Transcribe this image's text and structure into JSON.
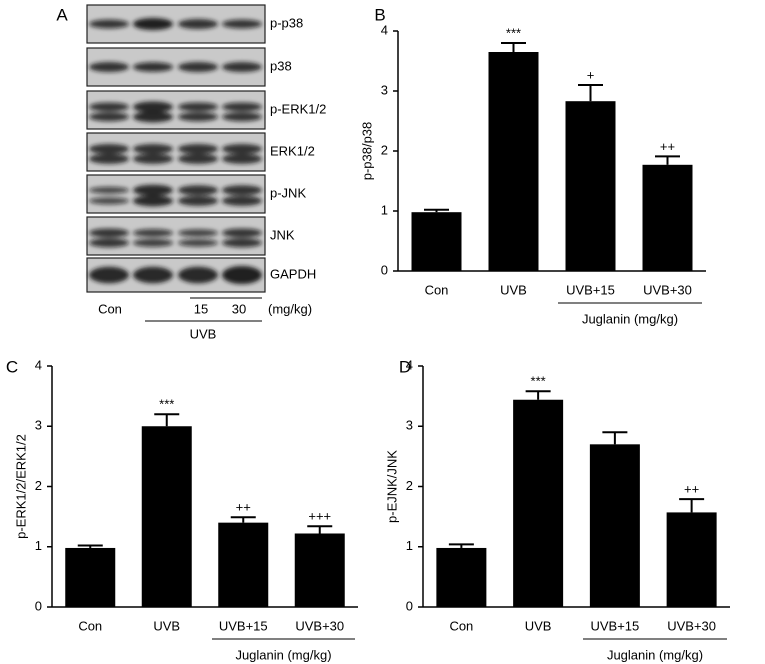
{
  "blot": {
    "panel": "A",
    "rows": [
      "p-p38",
      "p38",
      "p-ERK1/2",
      "ERK1/2",
      "p-JNK",
      "JNK",
      "GAPDH"
    ],
    "lanes": [
      "Con",
      "15",
      "30"
    ],
    "unit": "(mg/kg)",
    "group": "UVB"
  },
  "chart_data": [
    {
      "type": "bar",
      "panel": "B",
      "ylabel": "p-p38/p38",
      "color": "#000000",
      "categories": [
        "Con",
        "UVB",
        "UVB+15",
        "UVB+30"
      ],
      "values": [
        0.98,
        3.65,
        2.83,
        1.77
      ],
      "errors": [
        0.04,
        0.15,
        0.27,
        0.14
      ],
      "annotations": [
        null,
        "***",
        "+",
        "++"
      ],
      "group_label": "Juglanin (mg/kg)",
      "ylim": [
        0,
        4
      ],
      "yticks": [
        0,
        1,
        2,
        3,
        4
      ]
    },
    {
      "type": "bar",
      "panel": "C",
      "ylabel": "p-ERK1/2/ERK1/2",
      "color": "#000000",
      "categories": [
        "Con",
        "UVB",
        "UVB+15",
        "UVB+30"
      ],
      "values": [
        0.98,
        3.0,
        1.4,
        1.22
      ],
      "errors": [
        0.04,
        0.2,
        0.09,
        0.12
      ],
      "annotations": [
        null,
        "***",
        "++",
        "+++"
      ],
      "group_label": "Juglanin (mg/kg)",
      "ylim": [
        0,
        4
      ],
      "yticks": [
        0,
        1,
        2,
        3,
        4
      ]
    },
    {
      "type": "bar",
      "panel": "D",
      "ylabel": "p-EJNK/JNK",
      "color": "#000000",
      "categories": [
        "Con",
        "UVB",
        "UVB+15",
        "UVB+30"
      ],
      "values": [
        0.98,
        3.44,
        2.7,
        1.57
      ],
      "errors": [
        0.06,
        0.14,
        0.2,
        0.22
      ],
      "annotations": [
        null,
        "***",
        null,
        "++"
      ],
      "group_label": "Juglanin (mg/kg)",
      "ylim": [
        0,
        4
      ],
      "yticks": [
        0,
        1,
        2,
        3,
        4
      ]
    }
  ]
}
